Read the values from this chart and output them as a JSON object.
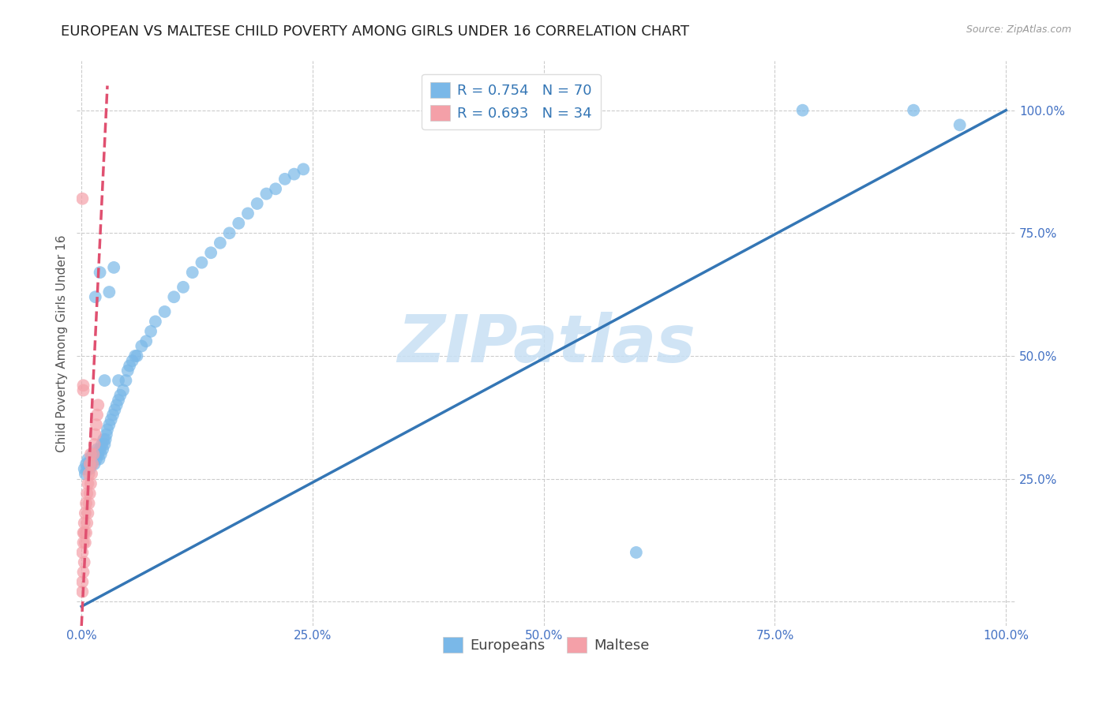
{
  "title": "EUROPEAN VS MALTESE CHILD POVERTY AMONG GIRLS UNDER 16 CORRELATION CHART",
  "source": "Source: ZipAtlas.com",
  "ylabel": "Child Poverty Among Girls Under 16",
  "watermark": "ZIPatlas",
  "blue_R": 0.754,
  "blue_N": 70,
  "pink_R": 0.693,
  "pink_N": 34,
  "blue_color": "#7ab8e8",
  "pink_color": "#f4a0a8",
  "blue_line_color": "#3476b5",
  "pink_line_color": "#e05070",
  "blue_scatter_x": [
    0.003,
    0.004,
    0.005,
    0.006,
    0.007,
    0.008,
    0.009,
    0.01,
    0.011,
    0.012,
    0.013,
    0.014,
    0.015,
    0.016,
    0.017,
    0.018,
    0.019,
    0.02,
    0.021,
    0.022,
    0.023,
    0.024,
    0.025,
    0.026,
    0.027,
    0.028,
    0.03,
    0.032,
    0.034,
    0.036,
    0.038,
    0.04,
    0.042,
    0.045,
    0.048,
    0.05,
    0.052,
    0.055,
    0.058,
    0.06,
    0.065,
    0.07,
    0.075,
    0.08,
    0.09,
    0.1,
    0.11,
    0.12,
    0.13,
    0.14,
    0.15,
    0.16,
    0.17,
    0.18,
    0.19,
    0.2,
    0.21,
    0.22,
    0.23,
    0.24,
    0.015,
    0.02,
    0.025,
    0.03,
    0.035,
    0.04,
    0.6,
    0.78,
    0.9,
    0.95
  ],
  "blue_scatter_y": [
    0.27,
    0.26,
    0.28,
    0.27,
    0.29,
    0.28,
    0.27,
    0.29,
    0.28,
    0.3,
    0.29,
    0.28,
    0.3,
    0.29,
    0.31,
    0.3,
    0.29,
    0.31,
    0.3,
    0.32,
    0.31,
    0.33,
    0.32,
    0.33,
    0.34,
    0.35,
    0.36,
    0.37,
    0.38,
    0.39,
    0.4,
    0.41,
    0.42,
    0.43,
    0.45,
    0.47,
    0.48,
    0.49,
    0.5,
    0.5,
    0.52,
    0.53,
    0.55,
    0.57,
    0.59,
    0.62,
    0.64,
    0.67,
    0.69,
    0.71,
    0.73,
    0.75,
    0.77,
    0.79,
    0.81,
    0.83,
    0.84,
    0.86,
    0.87,
    0.88,
    0.62,
    0.67,
    0.45,
    0.63,
    0.68,
    0.45,
    0.1,
    1.0,
    1.0,
    0.97
  ],
  "pink_scatter_x": [
    0.001,
    0.001,
    0.002,
    0.002,
    0.002,
    0.003,
    0.003,
    0.003,
    0.004,
    0.004,
    0.005,
    0.005,
    0.006,
    0.006,
    0.007,
    0.007,
    0.008,
    0.008,
    0.009,
    0.009,
    0.01,
    0.01,
    0.011,
    0.012,
    0.013,
    0.014,
    0.015,
    0.016,
    0.017,
    0.018,
    0.001,
    0.002,
    0.001,
    0.002
  ],
  "pink_scatter_y": [
    0.04,
    0.1,
    0.06,
    0.12,
    0.14,
    0.08,
    0.14,
    0.16,
    0.12,
    0.18,
    0.14,
    0.2,
    0.16,
    0.22,
    0.18,
    0.24,
    0.2,
    0.26,
    0.22,
    0.28,
    0.24,
    0.3,
    0.26,
    0.28,
    0.3,
    0.32,
    0.34,
    0.36,
    0.38,
    0.4,
    0.82,
    0.44,
    0.02,
    0.43
  ],
  "xlim": [
    -0.005,
    1.01
  ],
  "ylim": [
    -0.05,
    1.1
  ],
  "xticks": [
    0.0,
    0.25,
    0.5,
    0.75,
    1.0
  ],
  "yticks": [
    0.0,
    0.25,
    0.5,
    0.75,
    1.0
  ],
  "xtick_labels": [
    "0.0%",
    "25.0%",
    "50.0%",
    "75.0%",
    "100.0%"
  ],
  "ytick_labels": [
    "",
    "25.0%",
    "50.0%",
    "75.0%",
    "100.0%"
  ],
  "grid_color": "#cccccc",
  "background_color": "#ffffff",
  "tick_color": "#4472c4",
  "title_fontsize": 13,
  "axis_label_fontsize": 11,
  "tick_fontsize": 11,
  "legend_fontsize": 13,
  "watermark_fontsize": 60,
  "watermark_color": "#c8e0f4",
  "blue_line_x": [
    0.0,
    1.0
  ],
  "blue_line_y": [
    -0.01,
    1.0
  ],
  "pink_line_x": [
    0.0,
    0.028
  ],
  "pink_line_y": [
    -0.05,
    1.05
  ]
}
